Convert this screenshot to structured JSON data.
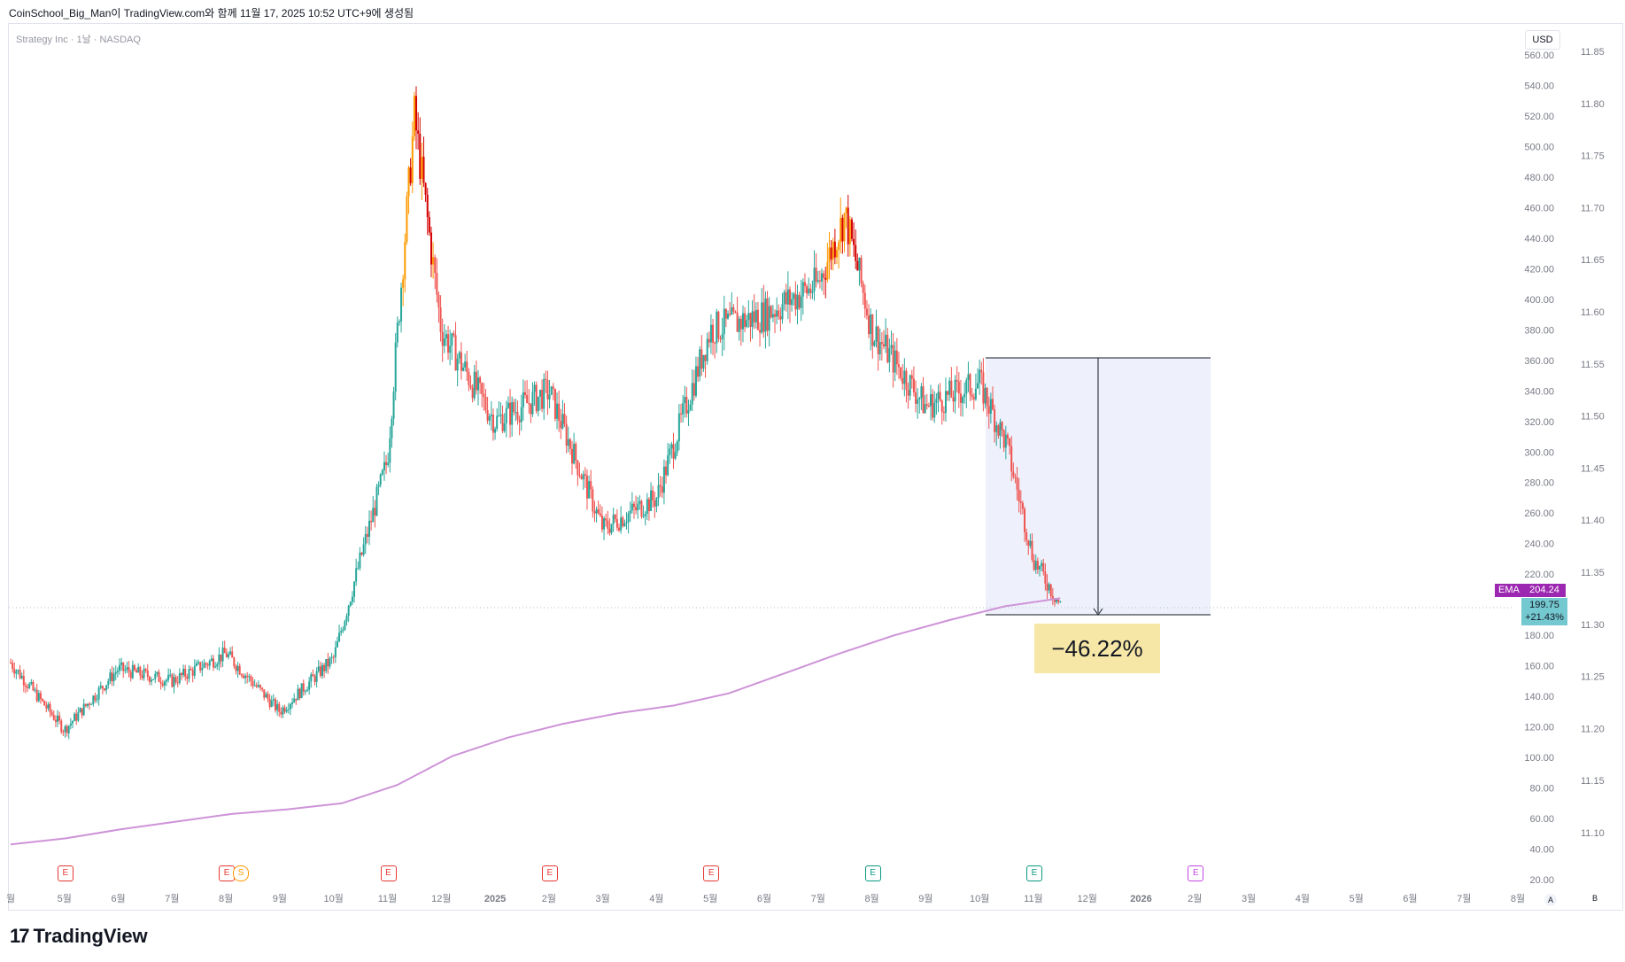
{
  "header": {
    "text": "CoinSchool_Big_Man이 TradingView.com와 함께 11월 17, 2025 10:52 UTC+9에 생성됨"
  },
  "symbol": {
    "title": "Strategy Inc · 1날 · NASDAQ"
  },
  "toolbar": {
    "currency": "USD",
    "axis_a": "A",
    "axis_b": "B"
  },
  "brand": {
    "name": "TradingView",
    "mark": "17"
  },
  "colors": {
    "up": "#26a69a",
    "down": "#ef5350",
    "highlight_up": "#ff9800",
    "highlight_down": "#d50000",
    "ema": "#ce93d8",
    "range_fill": "#eef1fb",
    "earnings_red": "#e53935",
    "earnings_green": "#089981",
    "earnings_purple": "#c447e0",
    "dividend_orange": "#ff9800"
  },
  "chart_data": {
    "type": "candlestick",
    "title": "Strategy Inc · 1날 · NASDAQ",
    "x_ticks": [
      "월",
      "5월",
      "6월",
      "7월",
      "8월",
      "9월",
      "10월",
      "11월",
      "12월",
      "2025",
      "2월",
      "3월",
      "4월",
      "5월",
      "6월",
      "7월",
      "8월",
      "9월",
      "10월",
      "11월",
      "12월",
      "2026",
      "2월",
      "3월",
      "4월",
      "5월",
      "6월",
      "7월",
      "8월"
    ],
    "y_ticks_left": [
      "560.00",
      "540.00",
      "520.00",
      "500.00",
      "480.00",
      "460.00",
      "440.00",
      "420.00",
      "400.00",
      "380.00",
      "360.00",
      "340.00",
      "320.00",
      "300.00",
      "280.00",
      "260.00",
      "240.00",
      "220.00",
      "180.00",
      "160.00",
      "140.00",
      "120.00",
      "100.00",
      "80.00",
      "60.00",
      "40.00",
      "20.00"
    ],
    "y_ticks_right": [
      "11.85",
      "11.80",
      "11.75",
      "11.70",
      "11.65",
      "11.60",
      "11.55",
      "11.50",
      "11.45",
      "11.40",
      "11.35",
      "11.30",
      "11.25",
      "11.20",
      "11.15",
      "11.10"
    ],
    "ylim": [
      20,
      560
    ],
    "grid": false,
    "price_path": [
      [
        "월",
        162
      ],
      [
        "5월",
        118
      ],
      [
        "6월",
        158
      ],
      [
        "7월",
        150
      ],
      [
        "8월",
        168
      ],
      [
        "9월",
        130
      ],
      [
        "10월",
        165
      ],
      [
        "11월",
        295
      ],
      [
        "11월",
        520
      ],
      [
        "12월",
        380
      ],
      [
        "2025",
        320
      ],
      [
        "2월",
        340
      ],
      [
        "3월",
        250
      ],
      [
        "4월",
        270
      ],
      [
        "5월",
        380
      ],
      [
        "6월",
        390
      ],
      [
        "7월",
        410
      ],
      [
        "7월",
        455
      ],
      [
        "8월",
        380
      ],
      [
        "9월",
        330
      ],
      [
        "10월",
        345
      ],
      [
        "10월",
        305
      ],
      [
        "11월",
        230
      ],
      [
        "11월",
        199.75
      ]
    ],
    "ema": {
      "label": "EMA",
      "value": "204.24",
      "path": [
        [
          "월",
          43
        ],
        [
          "5월",
          47
        ],
        [
          "6월",
          53
        ],
        [
          "7월",
          58
        ],
        [
          "8월",
          63
        ],
        [
          "9월",
          66
        ],
        [
          "10월",
          70
        ],
        [
          "11월",
          82
        ],
        [
          "12월",
          101
        ],
        [
          "2025",
          113
        ],
        [
          "2월",
          122
        ],
        [
          "3월",
          129
        ],
        [
          "4월",
          134
        ],
        [
          "5월",
          142
        ],
        [
          "6월",
          155
        ],
        [
          "7월",
          168
        ],
        [
          "8월",
          180
        ],
        [
          "9월",
          190
        ],
        [
          "10월",
          199
        ],
        [
          "11월",
          204.24
        ]
      ]
    },
    "last_price": {
      "value": "199.75",
      "change": "+21.43%"
    },
    "measure": {
      "from": 363,
      "to": 195,
      "label": "−46.22%"
    },
    "earnings_markers": [
      {
        "label": "E",
        "color": "earnings_red"
      },
      {
        "label": "E",
        "color": "earnings_red",
        "extra": "S"
      },
      {
        "label": "E",
        "color": "earnings_red"
      },
      {
        "label": "E",
        "color": "earnings_red"
      },
      {
        "label": "E",
        "color": "earnings_red"
      },
      {
        "label": "E",
        "color": "earnings_green"
      },
      {
        "label": "E",
        "color": "earnings_green"
      },
      {
        "label": "E",
        "color": "earnings_purple"
      }
    ]
  }
}
